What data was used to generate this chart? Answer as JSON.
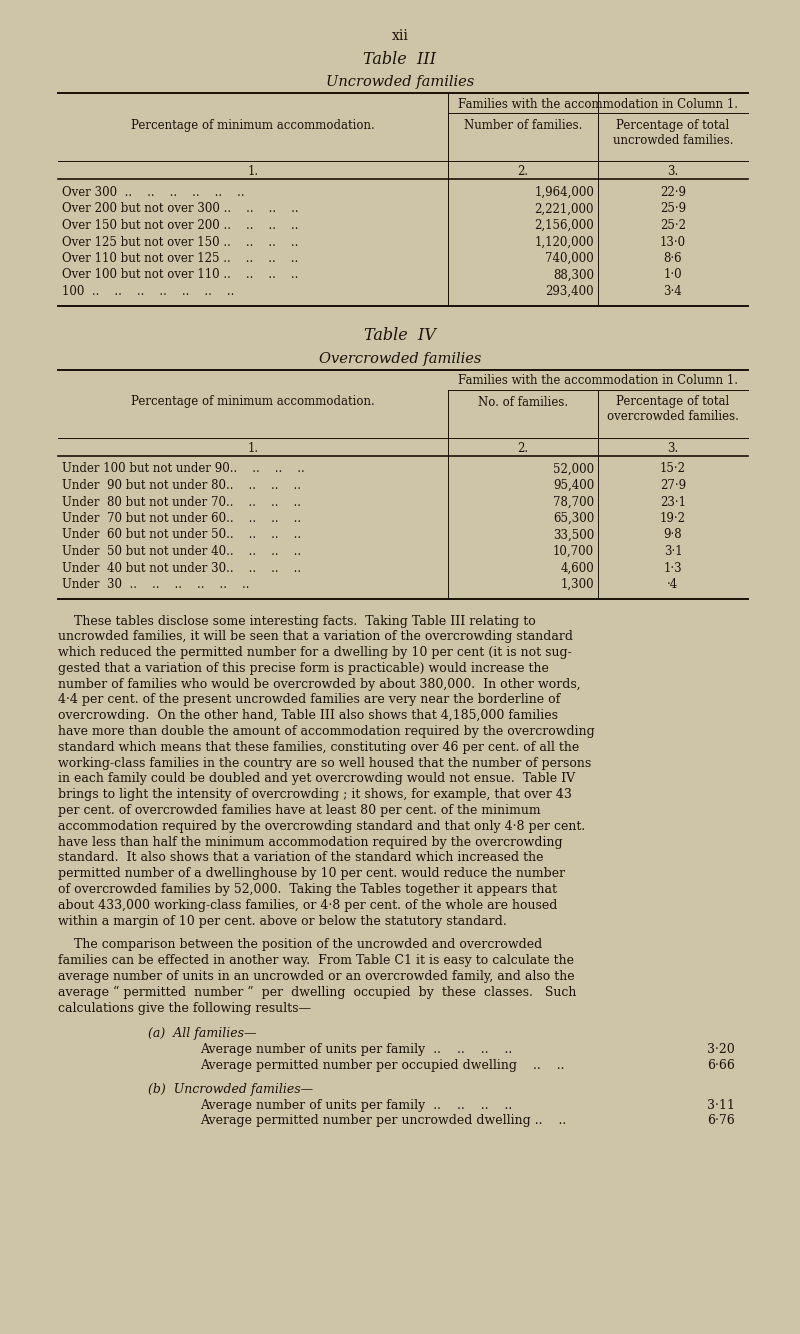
{
  "bg_color": "#cec5a8",
  "text_color": "#1a1208",
  "page_title": "xii",
  "table3_title": "Table  III",
  "table3_subtitle": "Uncrowded families",
  "table3_span_header": "Families with the accommodation in Column 1.",
  "table3_col1_header": "Percentage of minimum accommodation.",
  "table3_col2_header": "Number of families.",
  "table3_col3_header": "Percentage of total\nuncrowded families.",
  "table3_rows": [
    [
      "Over 300  ..    ..    ..    ..    ..    ..",
      "1,964,000",
      "22·9"
    ],
    [
      "Over 200 but not over 300 ..    ..    ..    ..",
      "2,221,000",
      "25·9"
    ],
    [
      "Over 150 but not over 200 ..    ..    ..    ..",
      "2,156,000",
      "25·2"
    ],
    [
      "Over 125 but not over 150 ..    ..    ..    ..",
      "1,120,000",
      "13·0"
    ],
    [
      "Over 110 but not over 125 ..    ..    ..    ..",
      "740,000",
      "8·6"
    ],
    [
      "Over 100 but not over 110 ..    ..    ..    ..",
      "88,300",
      "1·0"
    ],
    [
      "100  ..    ..    ..    ..    ..    ..    ..",
      "293,400",
      "3·4"
    ]
  ],
  "table4_title": "Table  IV",
  "table4_subtitle": "Overcrowded families",
  "table4_span_header": "Families with the accommodation in Column 1.",
  "table4_col1_header": "Percentage of minimum accommodation.",
  "table4_col2_header": "No. of families.",
  "table4_col3_header": "Percentage of total\novercrowded families.",
  "table4_rows": [
    [
      "Under 100 but not under 90..    ..    ..    ..",
      "52,000",
      "15·2"
    ],
    [
      "Under  90 but not under 80..    ..    ..    ..",
      "95,400",
      "27·9"
    ],
    [
      "Under  80 but not under 70..    ..    ..    ..",
      "78,700",
      "23·1"
    ],
    [
      "Under  70 but not under 60..    ..    ..    ..",
      "65,300",
      "19·2"
    ],
    [
      "Under  60 but not under 50..    ..    ..    ..",
      "33,500",
      "9·8"
    ],
    [
      "Under  50 but not under 40..    ..    ..    ..",
      "10,700",
      "3·1"
    ],
    [
      "Under  40 but not under 30..    ..    ..    ..",
      "4,600",
      "1·3"
    ],
    [
      "Under  30  ..    ..    ..    ..    ..    ..",
      "1,300",
      "·4"
    ]
  ],
  "para1_lines": [
    "    These tables disclose some interesting facts.  Taking Table III relating to",
    "uncrowded families, it will be seen that a variation of the overcrowding standard",
    "which reduced the permitted number for a dwelling by 10 per cent (it is not sug-",
    "gested that a variation of this precise form is practicable) would increase the",
    "number of families who would be overcrowded by about 380,000.  In other words,",
    "4·4 per cent. of the present uncrowded families are very near the borderline of",
    "overcrowding.  On the other hand, Table III also shows that 4,185,000 families",
    "have more than double the amount of accommodation required by the overcrowding",
    "standard which means that these families, constituting over 46 per cent. of all the",
    "working-class families in the country are so well housed that the number of persons",
    "in each family could be doubled and yet overcrowding would not ensue.  Table IV",
    "brings to light the intensity of overcrowding ; it shows, for example, that over 43",
    "per cent. of overcrowded families have at least 80 per cent. of the minimum",
    "accommodation required by the overcrowding standard and that only 4·8 per cent.",
    "have less than half the minimum accommodation required by the overcrowding",
    "standard.  It also shows that a variation of the standard which increased the",
    "permitted number of a dwellinghouse by 10 per cent. would reduce the number",
    "of overcrowded families by 52,000.  Taking the Tables together it appears that",
    "about 433,000 working-class families, or 4·8 per cent. of the whole are housed",
    "within a margin of 10 per cent. above or below the statutory standard."
  ],
  "para2_lines": [
    "    The comparison between the position of the uncrowded and overcrowded",
    "families can be effected in another way.  From Table C1 it is easy to calculate the",
    "average number of units in an uncrowded or an overcrowded family, and also the",
    "average “ permitted  number ”  per  dwelling  occupied  by  these  classes.   Such",
    "calculations give the following results—"
  ],
  "sec_a_label": "(a)  All families—",
  "sec_a_rows": [
    [
      "Average number of units per family  ..    ..    ..    ..",
      "3·20"
    ],
    [
      "Average permitted number per occupied dwelling    ..    ..",
      "6·66"
    ]
  ],
  "sec_b_label": "(b)  Uncrowded families—",
  "sec_b_rows": [
    [
      "Average number of units per family  ..    ..    ..    ..",
      "3·11"
    ],
    [
      "Average permitted number per uncrowded dwelling ..    ..",
      "6·76"
    ]
  ]
}
